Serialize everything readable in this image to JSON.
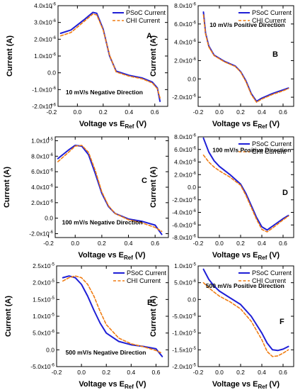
{
  "figure": {
    "y_axis_label": "Current (A)",
    "x_axis_label_main": "Voltage vs E",
    "x_axis_label_sub": "Ref",
    "x_axis_label_unit": " (V)"
  },
  "legend": {
    "psoc": "PSoC Current",
    "chi": "CHI Current"
  },
  "colors": {
    "psoc": "#1f1fd6",
    "chi": "#f07c12"
  },
  "chart_data": [
    {
      "type": "line",
      "panel": "A",
      "annotation": "10 mV/s Negative Direction",
      "xlim": [
        -0.15,
        0.7
      ],
      "ylim": [
        -2e-06,
        4e-06
      ],
      "xticks": [
        {
          "v": -0.2,
          "label": "-0.2"
        },
        {
          "v": 0.0,
          "label": "0.0"
        },
        {
          "v": 0.2,
          "label": "0.2"
        },
        {
          "v": 0.4,
          "label": "0.4"
        },
        {
          "v": 0.6,
          "label": "0.6"
        }
      ],
      "yticks": [
        {
          "v": -2e-06,
          "label": "-2.0x10-6"
        },
        {
          "v": -1e-06,
          "label": "-1.0x10-6"
        },
        {
          "v": 0,
          "label": "0.0"
        },
        {
          "v": 1e-06,
          "label": "1.0x10-6"
        },
        {
          "v": 2e-06,
          "label": "2.0x10-6"
        },
        {
          "v": 3e-06,
          "label": "3.0x10-6"
        },
        {
          "v": 4e-06,
          "label": "4.0x10-6"
        }
      ],
      "series": [
        {
          "name": "PSoC Current",
          "x": [
            -0.13,
            -0.05,
            0.05,
            0.12,
            0.15,
            0.2,
            0.25,
            0.3,
            0.4,
            0.5,
            0.58,
            0.62,
            0.64
          ],
          "y": [
            2.35e-06,
            2.55e-06,
            3.15e-06,
            3.6e-06,
            3.55e-06,
            2.6e-06,
            1e-06,
            1e-07,
            -1.5e-07,
            -3e-07,
            -5.5e-07,
            -9e-07,
            -1.7e-06
          ]
        },
        {
          "name": "CHI Current",
          "x": [
            -0.13,
            -0.05,
            0.05,
            0.12,
            0.15,
            0.2,
            0.25,
            0.3,
            0.4,
            0.5,
            0.58,
            0.62,
            0.64
          ],
          "y": [
            2.2e-06,
            2.4e-06,
            3.05e-06,
            3.5e-06,
            3.45e-06,
            2.55e-06,
            1.05e-06,
            5e-08,
            -2e-07,
            -3.5e-07,
            -6e-07,
            -9.5e-07,
            -1.5e-06
          ]
        }
      ]
    },
    {
      "type": "line",
      "panel": "B",
      "annotation": "10 mV/s Positive Direction",
      "xlim": [
        -0.2,
        0.7
      ],
      "ylim": [
        -3e-06,
        8e-06
      ],
      "xticks": [
        {
          "v": -0.2,
          "label": "-0.2"
        },
        {
          "v": 0.0,
          "label": "0.0"
        },
        {
          "v": 0.2,
          "label": "0.2"
        },
        {
          "v": 0.4,
          "label": "0.4"
        },
        {
          "v": 0.6,
          "label": "0.6"
        }
      ],
      "yticks": [
        {
          "v": -2e-06,
          "label": "-2.0x10-6"
        },
        {
          "v": 0,
          "label": "0.0"
        },
        {
          "v": 2e-06,
          "label": "2.0x10-6"
        },
        {
          "v": 4e-06,
          "label": "4.0x10-6"
        },
        {
          "v": 6e-06,
          "label": "6.0x10-6"
        },
        {
          "v": 8e-06,
          "label": "8.0x10-6"
        }
      ],
      "series": [
        {
          "name": "PSoC Current",
          "x": [
            -0.15,
            -0.13,
            -0.1,
            -0.05,
            0.05,
            0.15,
            0.2,
            0.25,
            0.3,
            0.35,
            0.4,
            0.5,
            0.6,
            0.65
          ],
          "y": [
            7.3e-06,
            5e-06,
            3.6e-06,
            2.6e-06,
            1.9e-06,
            1.4e-06,
            8e-07,
            -2e-07,
            -1.6e-06,
            -2.45e-06,
            -2.1e-06,
            -1.6e-06,
            -1.2e-06,
            -1e-06
          ]
        },
        {
          "name": "CHI Current",
          "x": [
            -0.15,
            -0.13,
            -0.1,
            -0.05,
            0.05,
            0.15,
            0.2,
            0.25,
            0.3,
            0.35,
            0.4,
            0.5,
            0.6,
            0.65
          ],
          "y": [
            7e-06,
            4.9e-06,
            3.5e-06,
            2.55e-06,
            1.85e-06,
            1.35e-06,
            7.5e-07,
            -3e-07,
            -1.7e-06,
            -2.55e-06,
            -2.2e-06,
            -1.7e-06,
            -1.3e-06,
            -1.05e-06
          ]
        }
      ]
    },
    {
      "type": "line",
      "panel": "C",
      "annotation": "100 mV/s Negative Direction",
      "xlim": [
        -0.15,
        0.7
      ],
      "ylim": [
        -2.5e-06,
        1.05e-05
      ],
      "xticks": [
        {
          "v": -0.2,
          "label": "-0.2"
        },
        {
          "v": 0.0,
          "label": "0.0"
        },
        {
          "v": 0.2,
          "label": "0.2"
        },
        {
          "v": 0.4,
          "label": "0.4"
        },
        {
          "v": 0.6,
          "label": "0.6"
        }
      ],
      "yticks": [
        {
          "v": -2e-06,
          "label": "-2.0x10-6"
        },
        {
          "v": 0,
          "label": "0.0"
        },
        {
          "v": 2e-06,
          "label": "2.0x10-6"
        },
        {
          "v": 4e-06,
          "label": "4.0x10-6"
        },
        {
          "v": 6e-06,
          "label": "6.0x10-6"
        },
        {
          "v": 8e-06,
          "label": "8.0x10-6"
        },
        {
          "v": 1e-05,
          "label": "1.0x10-5"
        }
      ],
      "series": [
        {
          "name": "PSoC Current",
          "x": [
            -0.13,
            -0.05,
            0.0,
            0.05,
            0.1,
            0.15,
            0.2,
            0.25,
            0.3,
            0.4,
            0.5,
            0.6,
            0.65
          ],
          "y": [
            7.7e-06,
            8.8e-06,
            9.4e-06,
            9.3e-06,
            8.2e-06,
            5.8e-06,
            3.2e-06,
            1.5e-06,
            6e-07,
            -1e-07,
            -4e-07,
            -9e-07,
            -2.1e-06
          ]
        },
        {
          "name": "CHI Current",
          "x": [
            -0.13,
            -0.05,
            0.0,
            0.05,
            0.1,
            0.15,
            0.2,
            0.25,
            0.3,
            0.4,
            0.5,
            0.6,
            0.65
          ],
          "y": [
            7.3e-06,
            8.5e-06,
            9.3e-06,
            9.4e-06,
            8.5e-06,
            6.2e-06,
            3.4e-06,
            1.6e-06,
            6e-07,
            -2e-07,
            -6e-07,
            -1.2e-06,
            -1.7e-06
          ]
        }
      ]
    },
    {
      "type": "line",
      "panel": "D",
      "annotation": "100 mV/s Positive Direction",
      "xlim": [
        -0.2,
        0.7
      ],
      "ylim": [
        -8e-06,
        8e-06
      ],
      "xticks": [
        {
          "v": -0.2,
          "label": "-0.2"
        },
        {
          "v": 0.0,
          "label": "0.0"
        },
        {
          "v": 0.2,
          "label": "0.2"
        },
        {
          "v": 0.4,
          "label": "0.4"
        },
        {
          "v": 0.6,
          "label": "0.6"
        }
      ],
      "yticks": [
        {
          "v": -8e-06,
          "label": "-8.0x10-6"
        },
        {
          "v": -6e-06,
          "label": "-6.0x10-6"
        },
        {
          "v": -4e-06,
          "label": "-4.0x10-6"
        },
        {
          "v": -2e-06,
          "label": "-2.0x10-6"
        },
        {
          "v": 0,
          "label": "0.0"
        },
        {
          "v": 2e-06,
          "label": "2.0x10-6"
        },
        {
          "v": 4e-06,
          "label": "4.0x10-6"
        },
        {
          "v": 6e-06,
          "label": "6.0x10-6"
        },
        {
          "v": 8e-06,
          "label": "8.0x10-6"
        }
      ],
      "series": [
        {
          "name": "PSoC Current",
          "x": [
            -0.15,
            -0.1,
            -0.05,
            0.0,
            0.1,
            0.2,
            0.25,
            0.3,
            0.35,
            0.4,
            0.45,
            0.5,
            0.6,
            0.65
          ],
          "y": [
            7.8e-06,
            5.6e-06,
            4.2e-06,
            3.3e-06,
            2e-06,
            5e-07,
            -1e-06,
            -2.9e-06,
            -4.8e-06,
            -6.3e-06,
            -6.8e-06,
            -6.2e-06,
            -5e-06,
            -4.5e-06
          ]
        },
        {
          "name": "CHI Current",
          "x": [
            -0.15,
            -0.1,
            -0.05,
            0.0,
            0.1,
            0.2,
            0.25,
            0.3,
            0.35,
            0.4,
            0.45,
            0.5,
            0.6,
            0.65
          ],
          "y": [
            5.1e-06,
            4e-06,
            3.2e-06,
            2.6e-06,
            1.6e-06,
            3e-07,
            -1.3e-06,
            -3.2e-06,
            -5.1e-06,
            -6.7e-06,
            -7.1e-06,
            -6.5e-06,
            -5.2e-06,
            -4.6e-06
          ]
        }
      ]
    },
    {
      "type": "line",
      "panel": "E",
      "annotation": "500 mV/s Negative Direction",
      "xlim": [
        -0.2,
        0.7
      ],
      "ylim": [
        -5e-06,
        2.5e-05
      ],
      "xticks": [
        {
          "v": -0.2,
          "label": "-0.2"
        },
        {
          "v": 0.0,
          "label": "0.0"
        },
        {
          "v": 0.2,
          "label": "0.2"
        },
        {
          "v": 0.4,
          "label": "0.4"
        },
        {
          "v": 0.6,
          "label": "0.6"
        }
      ],
      "yticks": [
        {
          "v": -5e-06,
          "label": "-5.0x10-6"
        },
        {
          "v": 0,
          "label": "0.0"
        },
        {
          "v": 5e-06,
          "label": "5.0x10-6"
        },
        {
          "v": 1e-05,
          "label": "1.0x10-5"
        },
        {
          "v": 1.5e-05,
          "label": "1.5x10-5"
        },
        {
          "v": 2e-05,
          "label": "2.0x10-5"
        },
        {
          "v": 2.5e-05,
          "label": "2.5x10-5"
        }
      ],
      "series": [
        {
          "name": "PSoC Current",
          "x": [
            -0.15,
            -0.1,
            -0.05,
            0.0,
            0.05,
            0.1,
            0.15,
            0.2,
            0.3,
            0.4,
            0.5,
            0.6,
            0.65
          ],
          "y": [
            2.15e-05,
            2.2e-05,
            2.15e-05,
            1.95e-05,
            1.6e-05,
            1.18e-05,
            8e-06,
            5e-06,
            2.5e-06,
            1.5e-06,
            1e-06,
            3e-07,
            -2e-06
          ]
        },
        {
          "name": "CHI Current",
          "x": [
            -0.15,
            -0.1,
            -0.05,
            0.0,
            0.05,
            0.1,
            0.15,
            0.2,
            0.3,
            0.4,
            0.5,
            0.6,
            0.65
          ],
          "y": [
            2.05e-05,
            2.15e-05,
            2.2e-05,
            2.15e-05,
            1.95e-05,
            1.6e-05,
            1.15e-05,
            7.5e-06,
            3.5e-06,
            1.8e-06,
            9e-07,
            -2e-07,
            -1e-06
          ]
        }
      ]
    },
    {
      "type": "line",
      "panel": "F",
      "annotation": "500 mV/s Positive Direction",
      "xlim": [
        -0.2,
        0.7
      ],
      "ylim": [
        -2e-05,
        1e-05
      ],
      "xticks": [
        {
          "v": -0.2,
          "label": "-0.2"
        },
        {
          "v": 0.0,
          "label": "0.0"
        },
        {
          "v": 0.2,
          "label": "0.2"
        },
        {
          "v": 0.4,
          "label": "0.4"
        },
        {
          "v": 0.6,
          "label": "0.6"
        }
      ],
      "yticks": [
        {
          "v": -2e-05,
          "label": "-2.0x10-5"
        },
        {
          "v": -1.5e-05,
          "label": "-1.5x10-5"
        },
        {
          "v": -1e-05,
          "label": "-1.0x10-5"
        },
        {
          "v": -5e-06,
          "label": "-5.0x10-6"
        },
        {
          "v": 0,
          "label": "0.0"
        },
        {
          "v": 5e-06,
          "label": "5.0x10-6"
        },
        {
          "v": 1e-05,
          "label": "1.0x10-5"
        }
      ],
      "series": [
        {
          "name": "PSoC Current",
          "x": [
            -0.15,
            -0.1,
            -0.05,
            0.0,
            0.1,
            0.2,
            0.3,
            0.4,
            0.45,
            0.5,
            0.55,
            0.6,
            0.65
          ],
          "y": [
            9e-06,
            6e-06,
            4e-06,
            2.5e-06,
            5e-07,
            -1.5e-06,
            -5e-06,
            -1e-05,
            -1.3e-05,
            -1.5e-05,
            -1.52e-05,
            -1.48e-05,
            -1.4e-05
          ]
        },
        {
          "name": "CHI Current",
          "x": [
            -0.15,
            -0.1,
            -0.05,
            0.0,
            0.1,
            0.2,
            0.3,
            0.4,
            0.45,
            0.5,
            0.55,
            0.6,
            0.65
          ],
          "y": [
            5e-06,
            3.5e-06,
            2.2e-06,
            1e-06,
            -7e-07,
            -2.8e-06,
            -6.5e-06,
            -1.2e-05,
            -1.55e-05,
            -1.7e-05,
            -1.68e-05,
            -1.6e-05,
            -1.5e-05
          ]
        }
      ]
    }
  ]
}
